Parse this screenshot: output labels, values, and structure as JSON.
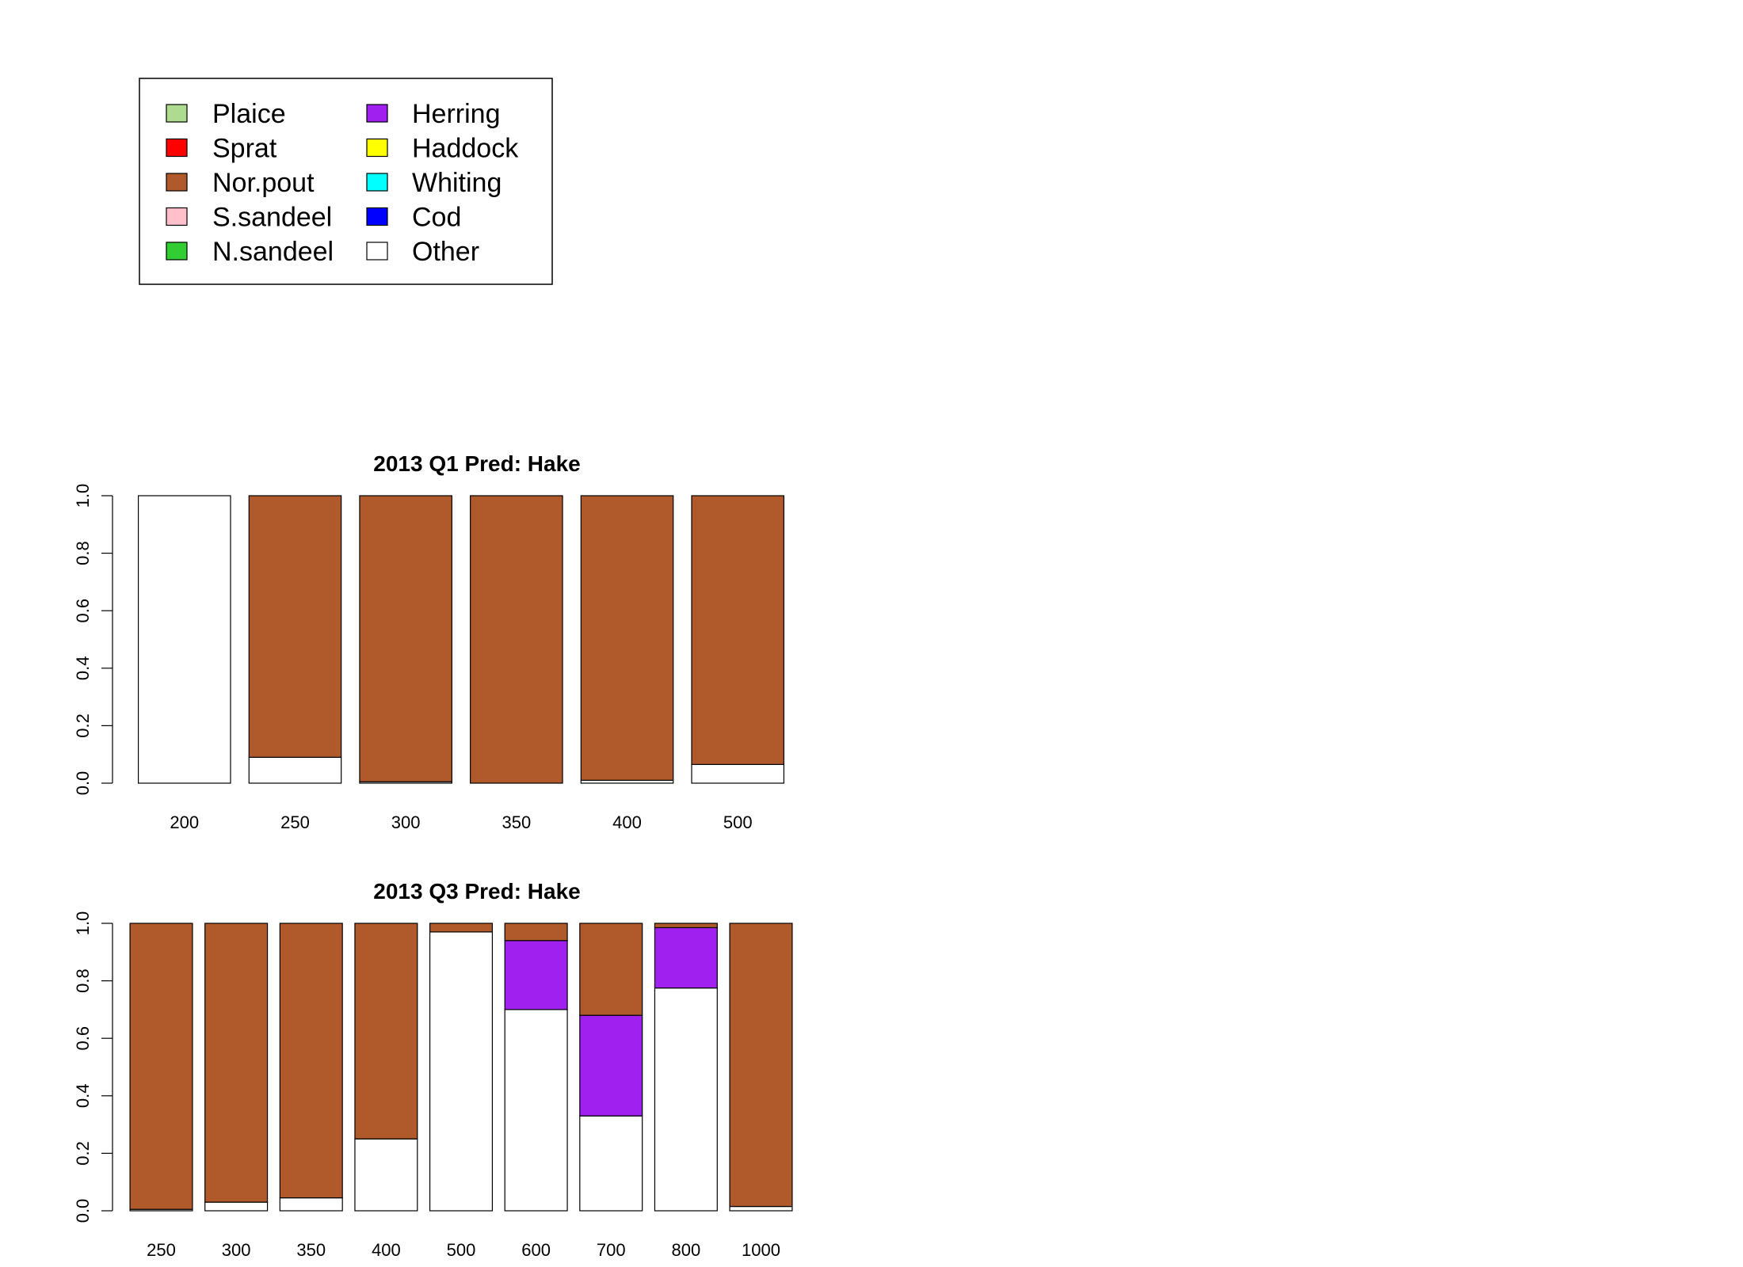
{
  "legend": {
    "items": [
      {
        "label": "Plaice",
        "color": "#addc91"
      },
      {
        "label": "Sprat",
        "color": "#ff0000"
      },
      {
        "label": "Nor.pout",
        "color": "#b05a2b"
      },
      {
        "label": "S.sandeel",
        "color": "#ffc0cb"
      },
      {
        "label": "N.sandeel",
        "color": "#32cd32"
      },
      {
        "label": "Herring",
        "color": "#a020f0"
      },
      {
        "label": "Haddock",
        "color": "#ffff00"
      },
      {
        "label": "Whiting",
        "color": "#00ffff"
      },
      {
        "label": "Cod",
        "color": "#0000ff"
      },
      {
        "label": "Other",
        "color": "#ffffff"
      }
    ]
  },
  "chart_data": [
    {
      "type": "bar",
      "stacked": true,
      "title": "2013 Q1  Pred: Hake",
      "xlabel": "",
      "ylabel": "",
      "ylim": [
        0,
        1
      ],
      "yticks": [
        "0.0",
        "0.2",
        "0.4",
        "0.6",
        "0.8",
        "1.0"
      ],
      "categories": [
        "200",
        "250",
        "300",
        "350",
        "400",
        "500"
      ],
      "series": [
        {
          "name": "Other",
          "color": "#ffffff",
          "values": [
            1.0,
            0.09,
            0.005,
            0.0,
            0.01,
            0.065
          ]
        },
        {
          "name": "Herring",
          "color": "#a020f0",
          "values": [
            0,
            0,
            0,
            0,
            0,
            0
          ]
        },
        {
          "name": "Nor.pout",
          "color": "#b05a2b",
          "values": [
            0.0,
            0.91,
            0.995,
            1.0,
            0.99,
            0.935
          ]
        }
      ]
    },
    {
      "type": "bar",
      "stacked": true,
      "title": "2013 Q3  Pred: Hake",
      "xlabel": "",
      "ylabel": "",
      "ylim": [
        0,
        1
      ],
      "yticks": [
        "0.0",
        "0.2",
        "0.4",
        "0.6",
        "0.8",
        "1.0"
      ],
      "categories": [
        "250",
        "300",
        "350",
        "400",
        "500",
        "600",
        "700",
        "800",
        "1000"
      ],
      "series": [
        {
          "name": "Other",
          "color": "#ffffff",
          "values": [
            0.005,
            0.03,
            0.045,
            0.25,
            0.97,
            0.7,
            0.33,
            0.775,
            0.015
          ]
        },
        {
          "name": "Herring",
          "color": "#a020f0",
          "values": [
            0,
            0,
            0,
            0,
            0,
            0.24,
            0.35,
            0.21,
            0
          ]
        },
        {
          "name": "Nor.pout",
          "color": "#b05a2b",
          "values": [
            0.995,
            0.97,
            0.955,
            0.75,
            0.03,
            0.06,
            0.32,
            0.015,
            0.985
          ]
        }
      ]
    }
  ]
}
